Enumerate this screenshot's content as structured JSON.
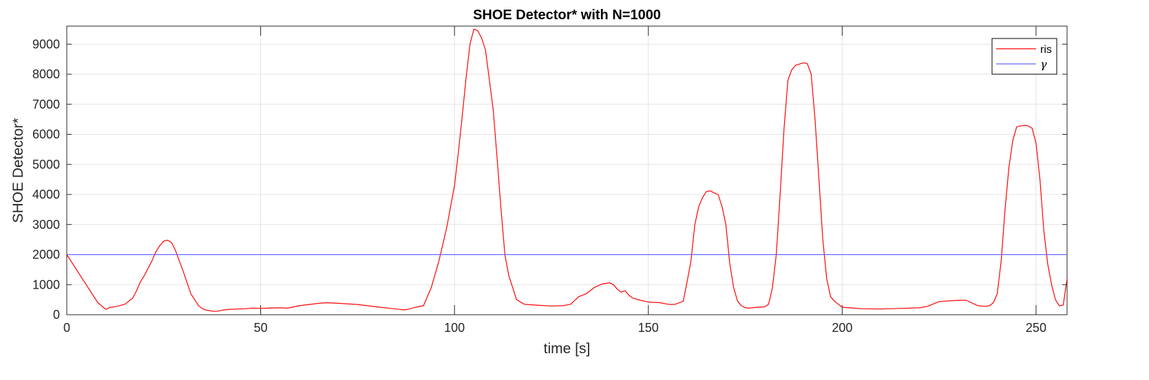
{
  "chart_data": {
    "type": "line",
    "title": "SHOE Detector* with N=1000",
    "xlabel": "time [s]",
    "ylabel": "SHOE Detector*",
    "xlim": [
      0,
      258
    ],
    "ylim": [
      0,
      9600
    ],
    "xticks": [
      0,
      50,
      100,
      150,
      200,
      250
    ],
    "yticks": [
      0,
      1000,
      2000,
      3000,
      4000,
      5000,
      6000,
      7000,
      8000,
      9000
    ],
    "grid": true,
    "legend_position": "top-right",
    "series": [
      {
        "name": "ris",
        "color": "#ff0000",
        "x": [
          0,
          3,
          6,
          8,
          10,
          10.5,
          11,
          13,
          15,
          17,
          18,
          19,
          20,
          22,
          23,
          24,
          25,
          26,
          27,
          28,
          29,
          30,
          32,
          34,
          35,
          36,
          38,
          39,
          40,
          42,
          44,
          46,
          48,
          50,
          52,
          55,
          57,
          60,
          65,
          67,
          70,
          75,
          80,
          85,
          87,
          88,
          90,
          92,
          94,
          96,
          98,
          100,
          101,
          102,
          103,
          104,
          105,
          106,
          107,
          108,
          109,
          110,
          111,
          112,
          113,
          114,
          115,
          116,
          118,
          120,
          122,
          125,
          128,
          130,
          132,
          134,
          136,
          138,
          140,
          141,
          142,
          143,
          144,
          145,
          146,
          148,
          150,
          153,
          155,
          156,
          157,
          158,
          159,
          160,
          161,
          162,
          163,
          164,
          165,
          166,
          167,
          168,
          169,
          170,
          171,
          172,
          173,
          174,
          175,
          176,
          178,
          180,
          181,
          182,
          183,
          184,
          185,
          186,
          187,
          188,
          190,
          191,
          192,
          193,
          194,
          195,
          196,
          197,
          198,
          200,
          203,
          205,
          210,
          215,
          220,
          222,
          225,
          230,
          232,
          235,
          237,
          238,
          239,
          240,
          241,
          242,
          243,
          244,
          245,
          246,
          247,
          248,
          249,
          250,
          251,
          252,
          253,
          254,
          255,
          256,
          257,
          258
        ],
        "y": [
          2000,
          1400,
          800,
          400,
          180,
          200,
          240,
          280,
          350,
          550,
          800,
          1100,
          1300,
          1800,
          2100,
          2300,
          2450,
          2480,
          2400,
          2150,
          1800,
          1450,
          700,
          300,
          200,
          150,
          110,
          120,
          150,
          180,
          190,
          200,
          220,
          210,
          220,
          230,
          220,
          300,
          380,
          400,
          380,
          340,
          260,
          190,
          160,
          180,
          250,
          300,
          900,
          1800,
          2900,
          4300,
          5400,
          6600,
          7900,
          9000,
          9500,
          9450,
          9200,
          8800,
          7800,
          6800,
          5200,
          3500,
          2000,
          1300,
          900,
          500,
          350,
          330,
          310,
          290,
          300,
          350,
          600,
          700,
          900,
          1020,
          1060,
          1000,
          850,
          750,
          800,
          650,
          550,
          480,
          420,
          400,
          350,
          340,
          350,
          400,
          450,
          1100,
          1800,
          3000,
          3600,
          3900,
          4100,
          4120,
          4050,
          4000,
          3600,
          3000,
          1700,
          900,
          450,
          300,
          230,
          220,
          250,
          260,
          350,
          900,
          2000,
          4000,
          6200,
          7800,
          8150,
          8300,
          8380,
          8350,
          8000,
          6500,
          4500,
          2500,
          1200,
          600,
          450,
          250,
          220,
          200,
          190,
          210,
          230,
          280,
          440,
          480,
          480,
          300,
          280,
          300,
          400,
          700,
          1800,
          3500,
          4900,
          5800,
          6250,
          6280,
          6300,
          6280,
          6200,
          5700,
          4500,
          2800,
          1700,
          1000,
          500,
          300,
          320,
          1200
        ]
      },
      {
        "name": "γ",
        "color": "#6464ff",
        "x": [
          0,
          258
        ],
        "y": [
          2000,
          2000
        ]
      }
    ]
  }
}
